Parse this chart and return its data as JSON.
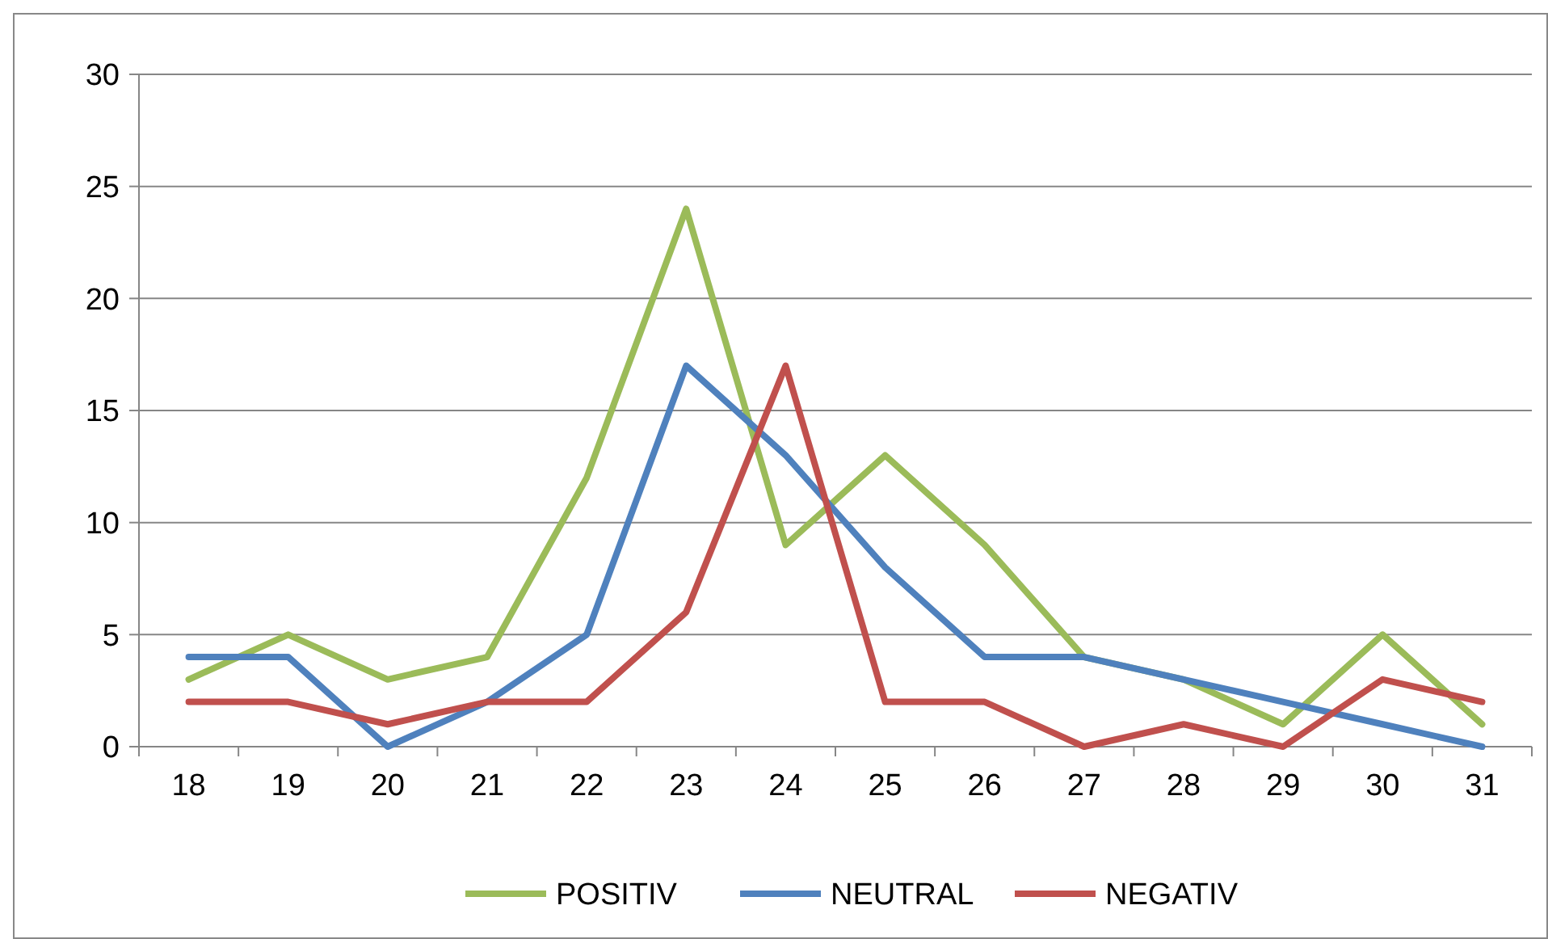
{
  "chart_data": {
    "type": "line",
    "categories": [
      "18",
      "19",
      "20",
      "21",
      "22",
      "23",
      "24",
      "25",
      "26",
      "27",
      "28",
      "29",
      "30",
      "31"
    ],
    "ylim": [
      0,
      30
    ],
    "yticks": [
      0,
      5,
      10,
      15,
      20,
      25,
      30
    ],
    "grid": "y",
    "legend": "bottom",
    "series": [
      {
        "name": "POSITIV",
        "color": "#9bbb59",
        "values": [
          3,
          5,
          3,
          4,
          12,
          24,
          9,
          13,
          9,
          4,
          3,
          1,
          5,
          1
        ]
      },
      {
        "name": "NEUTRAL",
        "color": "#4f81bd",
        "values": [
          4,
          4,
          0,
          2,
          5,
          17,
          13,
          8,
          4,
          4,
          3,
          2,
          1,
          0
        ]
      },
      {
        "name": "NEGATIV",
        "color": "#c0504d",
        "values": [
          2,
          2,
          1,
          2,
          2,
          6,
          17,
          2,
          2,
          0,
          1,
          0,
          3,
          2
        ]
      }
    ]
  }
}
